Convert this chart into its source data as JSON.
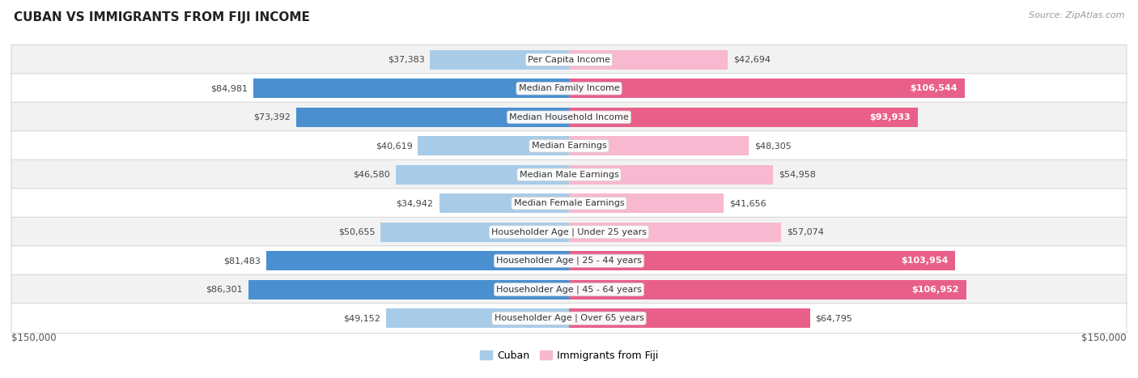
{
  "title": "CUBAN VS IMMIGRANTS FROM FIJI INCOME",
  "source": "Source: ZipAtlas.com",
  "categories": [
    "Per Capita Income",
    "Median Family Income",
    "Median Household Income",
    "Median Earnings",
    "Median Male Earnings",
    "Median Female Earnings",
    "Householder Age | Under 25 years",
    "Householder Age | 25 - 44 years",
    "Householder Age | 45 - 64 years",
    "Householder Age | Over 65 years"
  ],
  "cuban_values": [
    37383,
    84981,
    73392,
    40619,
    46580,
    34942,
    50655,
    81483,
    86301,
    49152
  ],
  "fiji_values": [
    42694,
    106544,
    93933,
    48305,
    54958,
    41656,
    57074,
    103954,
    106952,
    64795
  ],
  "cuban_labels": [
    "$37,383",
    "$84,981",
    "$73,392",
    "$40,619",
    "$46,580",
    "$34,942",
    "$50,655",
    "$81,483",
    "$86,301",
    "$49,152"
  ],
  "fiji_labels": [
    "$42,694",
    "$106,544",
    "$93,933",
    "$48,305",
    "$54,958",
    "$41,656",
    "$57,074",
    "$103,954",
    "$106,952",
    "$64,795"
  ],
  "max_value": 150000,
  "cuban_color_light": "#a8cce8",
  "cuban_color_dark": "#4a90d0",
  "fiji_color_light": "#f8b8d0",
  "fiji_color_dark": "#e8608a",
  "row_bg_odd": "#f2f2f2",
  "row_bg_even": "#ffffff",
  "row_border": "#d8d8d8",
  "label_dark": "#444444",
  "label_white": "#ffffff",
  "legend_cuban": "Cuban",
  "legend_fiji": "Immigrants from Fiji",
  "background_color": "#ffffff",
  "fiji_inside_threshold": 70000,
  "cuban_dark_threshold": 60000,
  "fiji_dark_threshold": 60000
}
